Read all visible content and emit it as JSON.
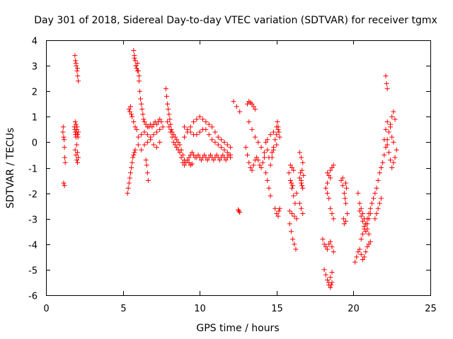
{
  "chart_data": {
    "type": "scatter",
    "title": "Day 301 of 2018, Sidereal Day-to-day VTEC variation (SDTVAR) for receiver tgmx",
    "xlabel": "GPS time / hours",
    "ylabel": "SDTVAR / TECUs",
    "xlim": [
      0,
      25
    ],
    "ylim": [
      -6,
      4
    ],
    "xticks": [
      0,
      5,
      10,
      15,
      20,
      25
    ],
    "yticks": [
      -6,
      -5,
      -4,
      -3,
      -2,
      -1,
      0,
      1,
      2,
      3,
      4
    ],
    "grid": false,
    "marker": "+",
    "color": "#ff0000",
    "series": [
      {
        "name": "SDTVAR",
        "x": [
          1.1,
          1.12,
          1.15,
          1.18,
          1.2,
          1.22,
          1.25,
          1.15,
          1.2,
          1.85,
          1.88,
          1.9,
          1.92,
          1.95,
          1.98,
          2.0,
          2.02,
          2.05,
          2.08,
          2.1,
          1.9,
          1.95,
          2.0,
          2.05,
          1.88,
          1.92,
          1.96,
          2.02,
          2.06,
          2.1,
          1.9,
          1.95,
          2.0,
          2.05,
          2.1,
          1.95,
          2.05,
          5.3,
          5.35,
          5.4,
          5.45,
          5.5,
          5.55,
          5.6,
          5.65,
          5.7,
          5.75,
          5.8,
          5.4,
          5.45,
          5.5,
          5.55,
          5.6,
          5.7,
          5.8,
          5.9,
          5.7,
          5.75,
          5.8,
          5.85,
          5.9,
          5.95,
          6.0,
          6.05,
          5.75,
          5.85,
          5.95,
          6.05,
          6.1,
          6.15,
          6.2,
          6.25,
          6.3,
          6.35,
          6.4,
          6.5,
          6.6,
          6.7,
          6.8,
          6.9,
          7.0,
          7.1,
          7.2,
          7.3,
          7.4,
          7.5,
          6.0,
          6.2,
          6.4,
          6.6,
          6.8,
          7.0,
          7.2,
          7.4,
          7.6,
          6.0,
          6.2,
          6.4,
          6.6,
          6.8,
          7.0,
          7.2,
          7.4,
          6.5,
          6.55,
          6.6,
          6.65,
          7.8,
          7.85,
          7.9,
          7.95,
          8.0,
          8.05,
          8.1,
          8.15,
          8.2,
          8.3,
          8.4,
          8.5,
          8.6,
          8.7,
          8.8,
          8.9,
          9.0,
          7.9,
          8.0,
          8.1,
          8.2,
          8.3,
          8.4,
          8.5,
          8.6,
          8.7,
          8.8,
          8.9,
          9.0,
          9.1,
          9.2,
          9.3,
          9.4,
          9.5,
          9.6,
          9.7,
          9.8,
          9.9,
          10.0,
          10.1,
          10.2,
          10.3,
          10.4,
          10.5,
          10.6,
          10.7,
          10.8,
          10.9,
          11.0,
          11.1,
          11.2,
          11.3,
          11.4,
          11.5,
          11.6,
          11.7,
          11.8,
          11.9,
          12.0,
          9.0,
          9.2,
          9.4,
          9.6,
          9.8,
          10.0,
          10.2,
          10.4,
          10.6,
          10.8,
          11.0,
          11.2,
          11.4,
          11.6,
          11.8,
          12.0,
          9.0,
          9.2,
          9.4,
          9.6,
          9.8,
          10.0,
          10.2,
          10.4,
          10.6,
          10.8,
          11.0,
          11.2,
          11.4,
          11.6,
          11.8,
          12.0,
          9.3,
          9.4,
          9.5,
          12.2,
          12.4,
          12.6,
          12.5,
          12.55,
          12.6,
          13.0,
          13.1,
          13.2,
          13.3,
          13.4,
          13.5,
          13.6,
          13.7,
          13.8,
          13.9,
          14.0,
          14.1,
          14.2,
          13.1,
          13.2,
          13.3,
          13.4,
          13.5,
          13.6,
          13.2,
          13.4,
          13.6,
          13.8,
          14.0,
          14.2,
          14.4,
          14.6,
          14.8,
          15.0,
          14.3,
          14.4,
          14.5,
          14.6,
          14.7,
          14.8,
          14.9,
          15.0,
          15.1,
          14.3,
          14.4,
          14.5,
          14.6,
          14.7,
          14.8,
          15.0,
          15.2,
          14.9,
          15.0,
          15.1,
          15.15,
          15.2,
          15.05,
          15.1,
          15.15,
          15.8,
          15.9,
          16.0,
          16.1,
          16.2,
          16.3,
          15.85,
          15.95,
          16.05,
          16.15,
          16.25,
          15.9,
          16.0,
          16.1,
          15.95,
          16.05,
          15.85,
          16.0,
          16.15,
          16.3,
          16.5,
          16.6,
          16.7,
          16.55,
          16.65,
          16.75,
          16.5,
          16.6,
          16.7,
          16.5,
          16.6,
          16.7,
          16.6,
          16.65,
          18.0,
          18.1,
          18.2,
          18.3,
          18.4,
          18.5,
          18.6,
          18.7,
          18.1,
          18.2,
          18.3,
          18.4,
          18.5,
          18.6,
          18.2,
          18.3,
          18.4,
          18.5,
          18.6,
          18.7,
          18.3,
          18.4,
          18.5,
          18.6,
          18.3,
          18.5,
          18.7,
          18.4,
          18.6,
          18.5,
          18.55,
          19.2,
          19.3,
          19.4,
          19.5,
          19.6,
          19.35,
          19.45,
          19.55,
          19.4,
          19.5,
          19.3,
          19.5,
          20.1,
          20.2,
          20.3,
          20.4,
          20.5,
          20.6,
          20.7,
          20.8,
          20.9,
          21.0,
          21.1,
          20.3,
          20.4,
          20.5,
          20.6,
          20.7,
          20.8,
          20.9,
          21.0,
          20.4,
          20.5,
          20.6,
          20.7,
          20.8,
          20.9,
          21.0,
          21.1,
          20.5,
          20.6,
          20.7,
          20.8,
          20.9,
          21.0,
          21.1,
          21.2,
          21.2,
          21.3,
          21.4,
          21.5,
          21.6,
          21.7,
          21.8,
          21.9,
          22.0,
          22.1,
          22.2,
          22.3,
          22.4,
          22.5,
          22.6,
          22.7,
          21.4,
          21.5,
          21.6,
          21.7,
          21.8,
          22.2,
          22.3,
          22.4,
          22.5,
          22.6,
          22.7,
          22.8,
          22.0,
          22.1,
          22.2,
          22.4,
          22.5,
          22.6,
          22.1,
          22.15,
          22.2
        ],
        "y": [
          0.4,
          0.6,
          0.2,
          0.1,
          -0.2,
          -0.6,
          -0.8,
          -1.6,
          -1.7,
          0.6,
          0.5,
          0.4,
          0.3,
          0.2,
          0.4,
          0.5,
          0.6,
          0.3,
          0.2,
          0.4,
          -0.3,
          -0.5,
          -0.7,
          -0.8,
          3.4,
          3.2,
          3.0,
          2.8,
          2.6,
          2.4,
          0.8,
          0.7,
          -0.1,
          -0.4,
          -0.6,
          3.1,
          2.9,
          -2.0,
          -1.8,
          -1.6,
          -1.4,
          -1.2,
          -1.0,
          -0.8,
          -0.6,
          -0.5,
          -0.4,
          -0.3,
          1.3,
          1.2,
          1.4,
          1.1,
          1.0,
          0.8,
          0.6,
          0.5,
          3.6,
          3.4,
          3.2,
          3.0,
          2.9,
          3.1,
          2.8,
          2.6,
          3.3,
          3.0,
          2.8,
          2.4,
          2.0,
          1.7,
          1.5,
          1.3,
          1.1,
          0.9,
          0.8,
          0.7,
          0.6,
          0.6,
          0.7,
          0.6,
          0.7,
          0.8,
          0.7,
          0.8,
          0.9,
          0.8,
          0.2,
          0.3,
          0.4,
          0.3,
          0.2,
          0.3,
          0.4,
          0.5,
          0.6,
          -0.1,
          -0.3,
          -0.1,
          0.0,
          0.1,
          -0.1,
          -0.2,
          0.0,
          -0.7,
          -0.9,
          -1.2,
          -1.5,
          2.1,
          1.8,
          1.5,
          1.3,
          1.1,
          0.9,
          0.7,
          0.5,
          0.4,
          0.3,
          0.2,
          0.1,
          0.0,
          -0.1,
          -0.3,
          -0.5,
          -0.7,
          0.8,
          0.6,
          0.4,
          0.2,
          0.0,
          -0.1,
          -0.2,
          -0.3,
          -0.4,
          -0.6,
          -0.8,
          -0.9,
          -0.8,
          -0.7,
          -0.6,
          -0.5,
          -0.4,
          -0.5,
          -0.6,
          -0.6,
          -0.5,
          -0.6,
          -0.7,
          -0.6,
          -0.5,
          -0.6,
          -0.7,
          -0.6,
          -0.5,
          -0.6,
          -0.7,
          -0.6,
          -0.5,
          -0.6,
          -0.7,
          -0.6,
          -0.5,
          -0.6,
          -0.7,
          -0.6,
          -0.5,
          -0.6,
          0.2,
          0.4,
          0.6,
          0.8,
          0.9,
          1.0,
          0.9,
          0.8,
          0.7,
          0.6,
          0.4,
          0.2,
          0.1,
          0.0,
          -0.1,
          -0.2,
          0.6,
          0.5,
          0.4,
          0.3,
          0.3,
          0.4,
          0.5,
          0.5,
          0.3,
          0.1,
          0.0,
          -0.1,
          -0.2,
          -0.3,
          -0.4,
          -0.5,
          -0.8,
          -0.9,
          -0.85,
          1.6,
          1.4,
          1.2,
          -2.65,
          -2.7,
          -2.75,
          -0.2,
          -0.5,
          -0.8,
          -1.0,
          -1.1,
          -0.9,
          -0.7,
          -0.6,
          -0.7,
          -0.9,
          -1.0,
          -0.8,
          -0.6,
          1.5,
          1.6,
          1.55,
          1.5,
          1.4,
          1.3,
          0.8,
          0.5,
          0.2,
          0.0,
          -0.2,
          -0.4,
          0.1,
          0.3,
          0.4,
          0.6,
          -1.2,
          -1.5,
          -1.8,
          -2.1,
          -0.4,
          -0.2,
          0.1,
          0.3,
          0.5,
          0.0,
          -0.3,
          -0.6,
          -0.9,
          -0.6,
          -0.3,
          -0.1,
          0.2,
          -2.6,
          -2.8,
          -2.9,
          -2.7,
          -2.6,
          0.8,
          0.6,
          0.4,
          -1.2,
          -1.5,
          -1.8,
          -2.1,
          -2.4,
          -2.0,
          -3.2,
          -3.5,
          -3.8,
          -4.0,
          -4.2,
          -0.9,
          -1.0,
          -1.1,
          -1.6,
          -1.7,
          -2.7,
          -2.8,
          -2.9,
          -3.0,
          -1.4,
          -1.6,
          -1.8,
          -1.2,
          -1.1,
          -1.3,
          -2.4,
          -2.6,
          -2.8,
          -0.4,
          -0.6,
          -0.8,
          -1.5,
          -1.7,
          -3.8,
          -4.0,
          -4.1,
          -4.2,
          -4.0,
          -3.9,
          -4.1,
          -4.3,
          -5.0,
          -5.2,
          -5.4,
          -5.5,
          -5.3,
          -5.1,
          -1.8,
          -2.0,
          -2.2,
          -2.6,
          -2.8,
          -3.0,
          -1.2,
          -1.3,
          -1.1,
          -1.0,
          -1.6,
          -1.4,
          -0.9,
          -5.6,
          -5.5,
          -5.7,
          -5.6,
          -1.5,
          -1.7,
          -2.0,
          -2.4,
          -2.8,
          -3.0,
          -2.2,
          -1.8,
          -3.2,
          -3.1,
          -1.4,
          -1.6,
          -4.7,
          -4.5,
          -4.3,
          -4.2,
          -4.4,
          -4.6,
          -4.5,
          -4.3,
          -4.1,
          -4.0,
          -3.9,
          -2.0,
          -2.4,
          -2.6,
          -2.8,
          -3.0,
          -3.2,
          -3.4,
          -3.6,
          -2.7,
          -2.9,
          -3.1,
          -3.3,
          -3.5,
          -3.2,
          -3.0,
          -2.8,
          -3.8,
          -3.6,
          -3.4,
          -3.2,
          -3.0,
          -2.8,
          -2.6,
          -2.4,
          -2.4,
          -2.2,
          -2.0,
          -1.8,
          -1.5,
          -1.2,
          -1.0,
          -0.8,
          -0.5,
          -0.2,
          0.1,
          0.4,
          0.7,
          1.0,
          1.2,
          0.9,
          -3.0,
          -2.8,
          -2.6,
          -2.4,
          -2.2,
          -0.1,
          -0.4,
          -0.7,
          -1.0,
          -0.8,
          -0.6,
          -0.3,
          0.1,
          0.5,
          0.8,
          0.6,
          0.2,
          0.0,
          2.6,
          2.3,
          2.1
        ]
      }
    ]
  }
}
